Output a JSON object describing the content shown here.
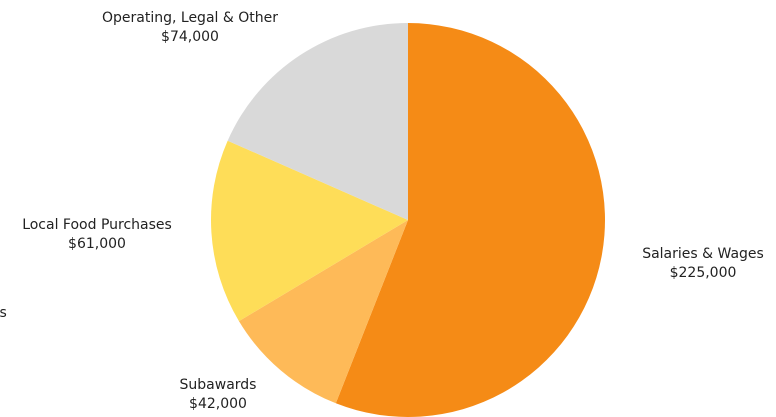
{
  "chart_data": {
    "type": "pie",
    "title": "",
    "slices": [
      {
        "label": "Salaries & Wages",
        "value": 225000,
        "value_label": "$225,000",
        "color": "#f58b16"
      },
      {
        "label": "Subawards",
        "value": 42000,
        "value_label": "$42,000",
        "color": "#feba58"
      },
      {
        "label": "",
        "value": 0,
        "value_label": "",
        "color": "#ffffff"
      },
      {
        "label": "Local Food Purchases",
        "value": 61000,
        "value_label": "$61,000",
        "color": "#fedd58"
      },
      {
        "label": "Operating, Legal & Other",
        "value": 74000,
        "value_label": "$74,000",
        "color": "#d9d9d9"
      }
    ],
    "partial_label_fragment": "ts",
    "start": "top",
    "direction": "clockwise",
    "legend": "none",
    "labels": "outside"
  }
}
